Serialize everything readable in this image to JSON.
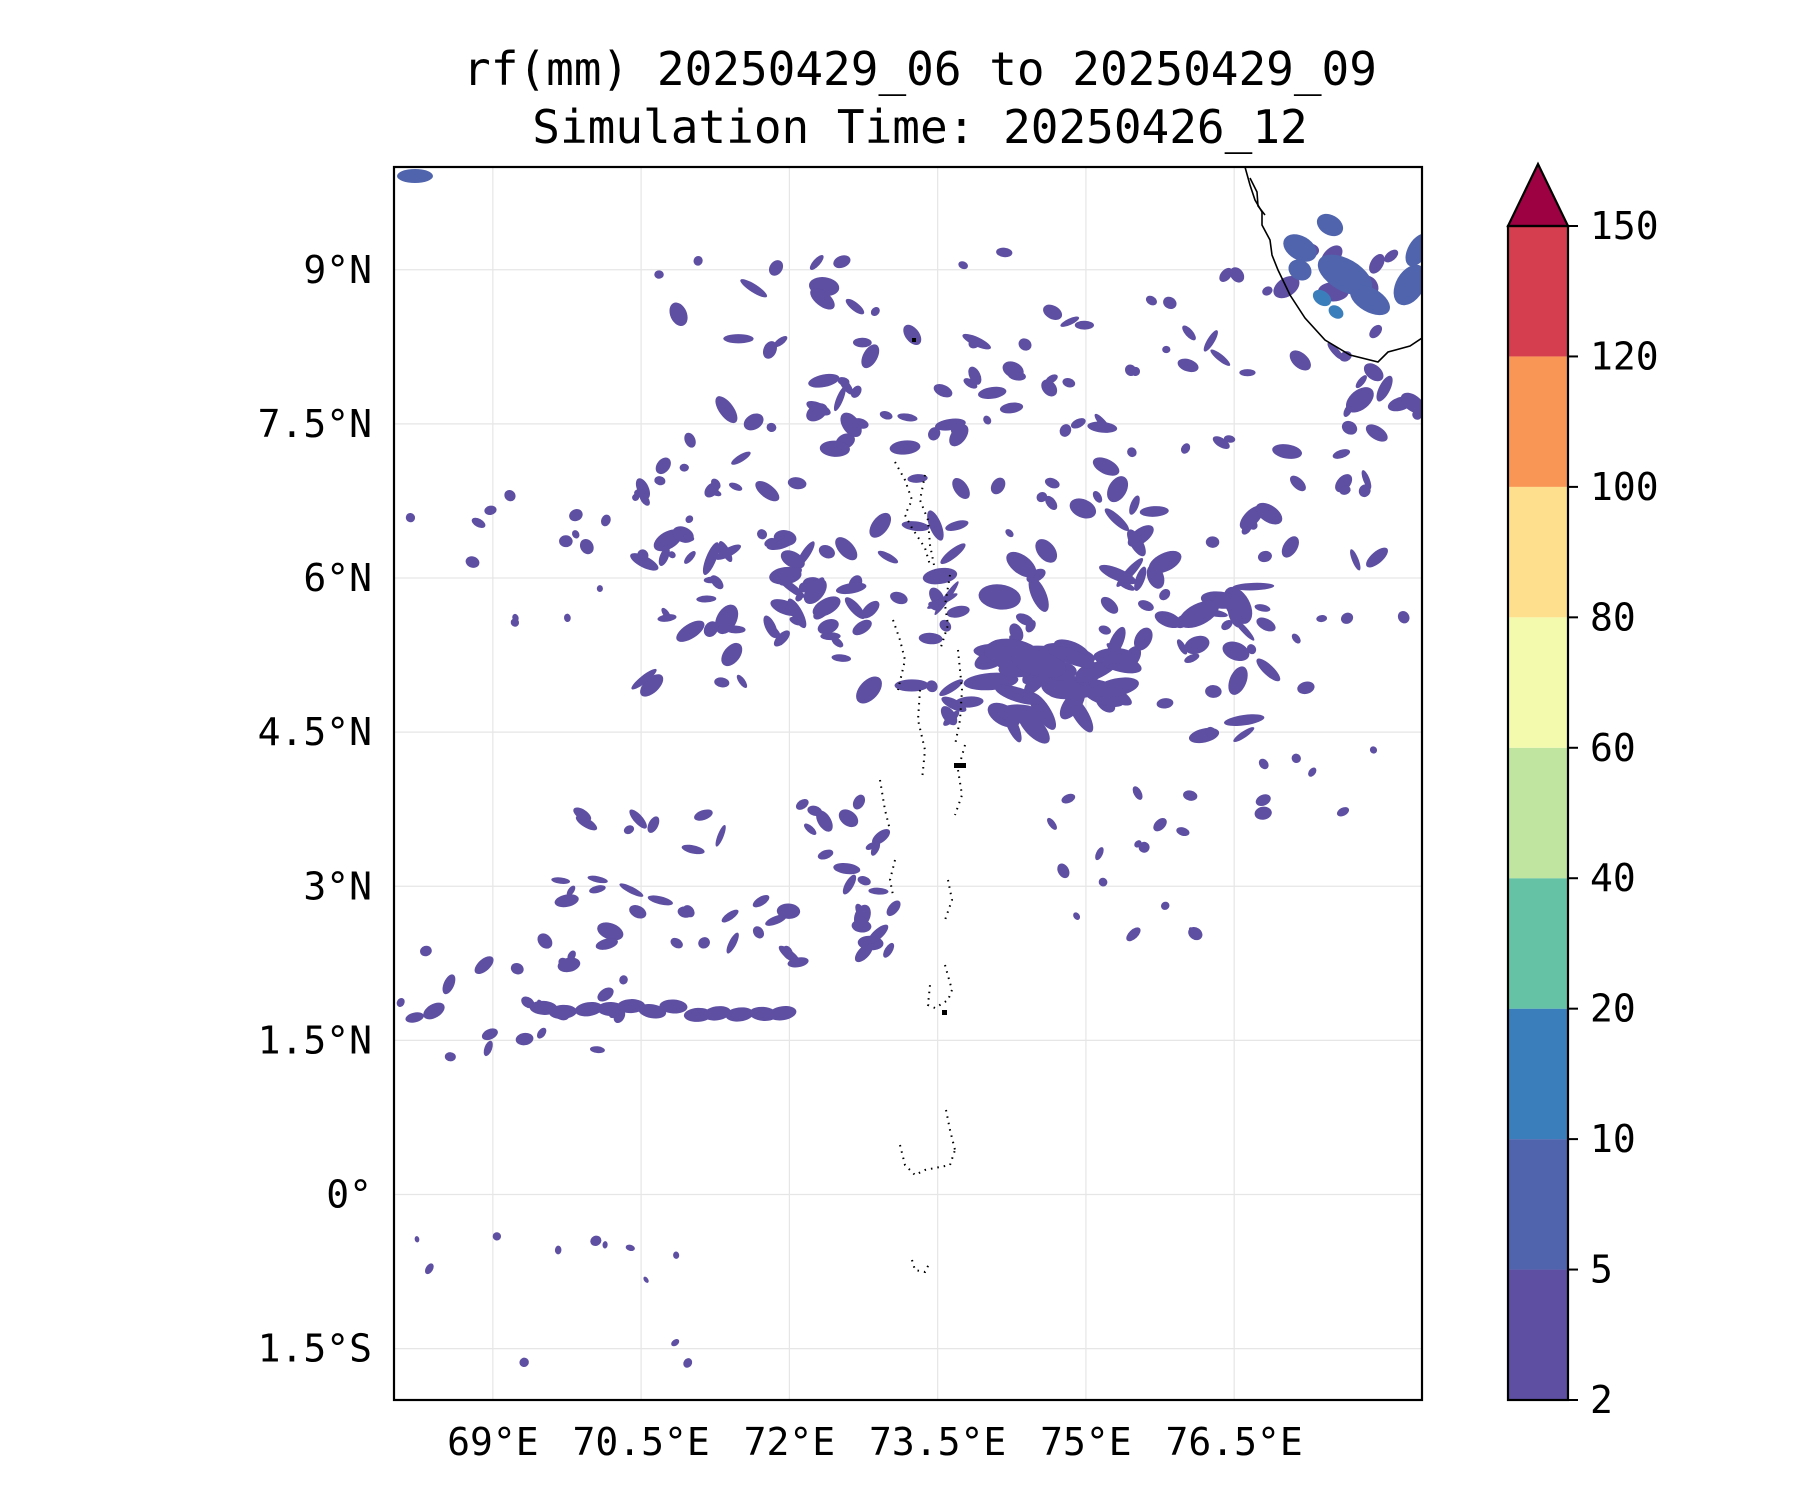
{
  "title": {
    "line1": "rf(mm) 20250429_06 to 20250429_09",
    "line2": "Simulation Time: 20250426_12"
  },
  "map": {
    "lon_range": [
      68.0,
      78.4
    ],
    "lat_range": [
      -2.0,
      10.0
    ],
    "lon_ticks": [
      {
        "value": 69.0,
        "label": "69°E"
      },
      {
        "value": 70.5,
        "label": "70.5°E"
      },
      {
        "value": 72.0,
        "label": "72°E"
      },
      {
        "value": 73.5,
        "label": "73.5°E"
      },
      {
        "value": 75.0,
        "label": "75°E"
      },
      {
        "value": 76.5,
        "label": "76.5°E"
      }
    ],
    "lat_ticks": [
      {
        "value": 9.0,
        "label": "9°N"
      },
      {
        "value": 7.5,
        "label": "7.5°N"
      },
      {
        "value": 6.0,
        "label": "6°N"
      },
      {
        "value": 4.5,
        "label": "4.5°N"
      },
      {
        "value": 3.0,
        "label": "3°N"
      },
      {
        "value": 1.5,
        "label": "1.5°N"
      },
      {
        "value": 0.0,
        "label": "0°"
      },
      {
        "value": -1.5,
        "label": "1.5°S"
      }
    ],
    "gridlines": true,
    "rain_color_light": "#5e4fa2",
    "rain_color_moderate": "#4f64ad",
    "rain_color_heavy": "#3a7fbb"
  },
  "colorbar": {
    "levels": [
      2,
      5,
      10,
      20,
      40,
      60,
      80,
      100,
      120,
      150
    ],
    "colors": [
      "#5e4fa2",
      "#4f64ad",
      "#3a7fbb",
      "#66c2a5",
      "#bfe5a0",
      "#f3faad",
      "#fedf8d",
      "#f99655",
      "#d53e4f"
    ],
    "extend_color": "#9e0142",
    "extend": "max",
    "placement": "right"
  }
}
